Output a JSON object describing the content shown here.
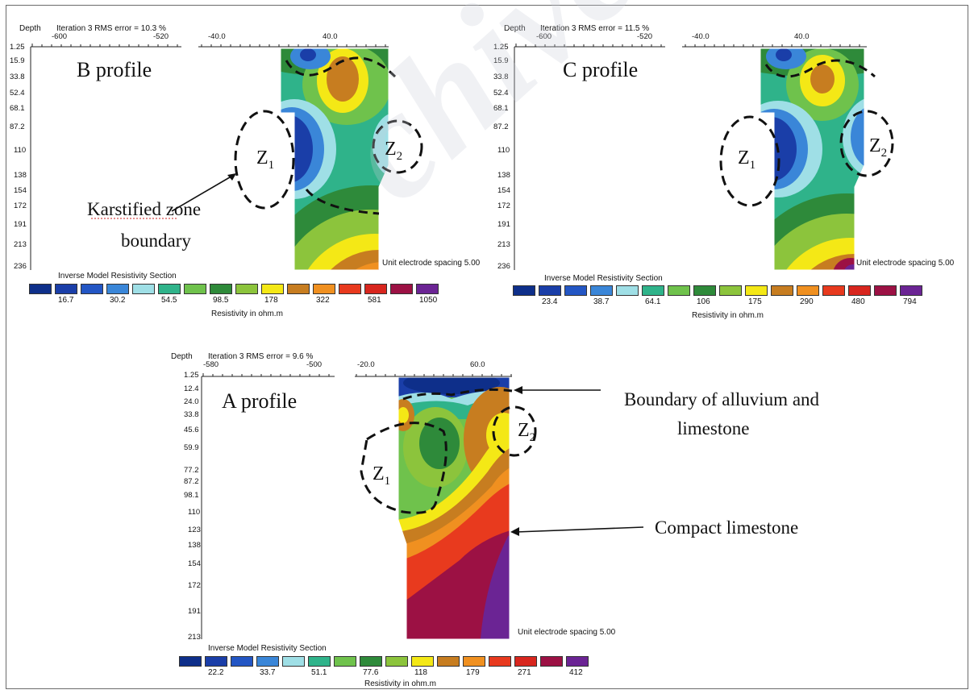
{
  "chart_data": [
    {
      "type": "heatmap",
      "title": "Inverse Model Resistivity Section",
      "profile_name": "B profile",
      "header_depth": "Depth",
      "header_iteration": "Iteration 3 RMS error = 10.3 %",
      "top_axis_ticks": [
        "-600",
        "-520",
        "-40.0",
        "40.0"
      ],
      "depths": [
        "1.25",
        "15.9",
        "33.8",
        "52.4",
        "68.1",
        "87.2",
        "110",
        "138",
        "154",
        "172",
        "191",
        "213",
        "236"
      ],
      "spacing_note": "Unit electrode spacing 5.00",
      "legend_values": [
        "16.7",
        "30.2",
        "54.5",
        "98.5",
        "178",
        "322",
        "581",
        "1050"
      ],
      "legend_colors": [
        "#0e2f8a",
        "#1a3ea8",
        "#2356c4",
        "#3a86d8",
        "#9fdfe6",
        "#2fb38a",
        "#6fc24c",
        "#2e8a3a",
        "#8cc43c",
        "#f4e816",
        "#c77d20",
        "#f09020",
        "#e83a1e",
        "#d8261e",
        "#9c1144",
        "#6b2494"
      ],
      "xlabel": "Resistivity in ohm.m",
      "zones": [
        "Z1",
        "Z2"
      ],
      "annotations": [
        "Karstified zone",
        "boundary"
      ]
    },
    {
      "type": "heatmap",
      "title": "Inverse Model Resistivity Section",
      "profile_name": "C profile",
      "header_depth": "Depth",
      "header_iteration": "Iteration 3 RMS error = 11.5 %",
      "top_axis_ticks": [
        "-600",
        "-520",
        "-40.0",
        "40.0"
      ],
      "depths": [
        "1.25",
        "15.9",
        "33.8",
        "52.4",
        "68.1",
        "87.2",
        "110",
        "138",
        "154",
        "172",
        "191",
        "213",
        "236"
      ],
      "spacing_note": "Unit electrode spacing 5.00",
      "legend_values": [
        "23.4",
        "38.7",
        "64.1",
        "106",
        "175",
        "290",
        "480",
        "794"
      ],
      "legend_colors": [
        "#0e2f8a",
        "#1a3ea8",
        "#2356c4",
        "#3a86d8",
        "#9fdfe6",
        "#2fb38a",
        "#6fc24c",
        "#2e8a3a",
        "#8cc43c",
        "#f4e816",
        "#c77d20",
        "#f09020",
        "#e83a1e",
        "#d8261e",
        "#9c1144",
        "#6b2494"
      ],
      "xlabel": "Resistivity in ohm.m",
      "zones": [
        "Z1",
        "Z2"
      ]
    },
    {
      "type": "heatmap",
      "title": "Inverse Model Resistivity Section",
      "profile_name": "A profile",
      "header_depth": "Depth",
      "header_iteration": "Iteration 3 RMS error = 9.6 %",
      "top_axis_ticks": [
        "-580",
        "-500",
        "-20.0",
        "60.0"
      ],
      "depths": [
        "1.25",
        "12.4",
        "24.0",
        "33.8",
        "45.6",
        "59.9",
        "77.2",
        "87.2",
        "98.1",
        "110",
        "123",
        "138",
        "154",
        "172",
        "191",
        "213"
      ],
      "spacing_note": "Unit electrode spacing 5.00",
      "legend_values": [
        "22.2",
        "33.7",
        "51.1",
        "77.6",
        "118",
        "179",
        "271",
        "412"
      ],
      "legend_colors": [
        "#0e2f8a",
        "#1a3ea8",
        "#2356c4",
        "#3a86d8",
        "#9fdfe6",
        "#2fb38a",
        "#6fc24c",
        "#2e8a3a",
        "#8cc43c",
        "#f4e816",
        "#c77d20",
        "#f09020",
        "#e83a1e",
        "#d8261e",
        "#9c1144",
        "#6b2494"
      ],
      "xlabel": "Resistivity in ohm.m",
      "zones": [
        "Z1",
        "Z2"
      ],
      "annotations": [
        "Boundary of alluvium and",
        "limestone",
        "Compact limestone"
      ]
    }
  ]
}
